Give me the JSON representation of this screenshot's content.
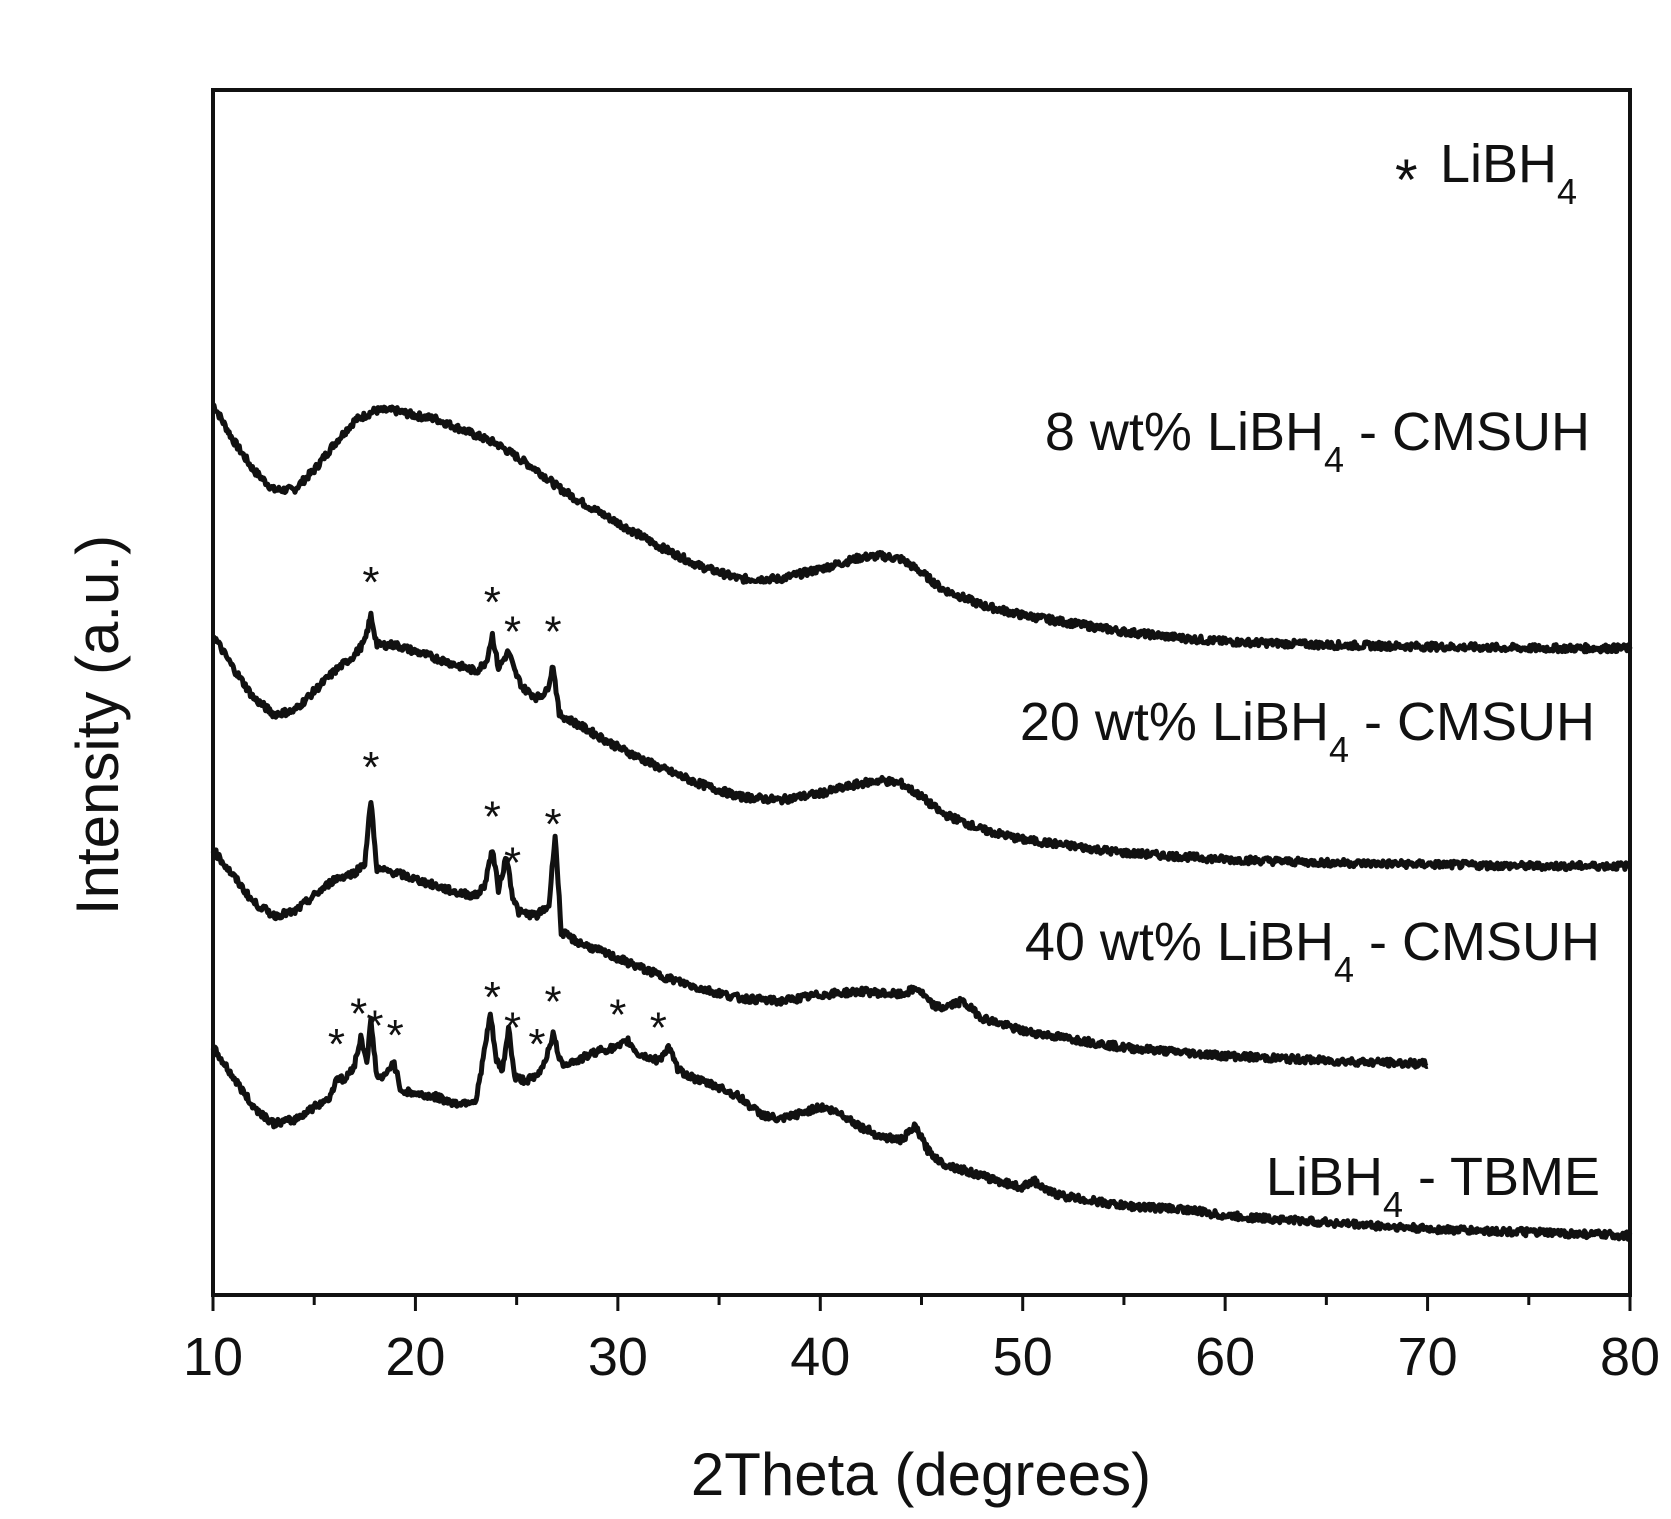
{
  "chart_data": {
    "type": "line",
    "title": "",
    "xlabel": "2Theta (degrees)",
    "ylabel": "Intensity (a.u.)",
    "xlim": [
      10,
      80
    ],
    "xticks": [
      10,
      20,
      30,
      40,
      50,
      60,
      70,
      80
    ],
    "xtick_labels": [
      "10",
      "20",
      "30",
      "40",
      "50",
      "60",
      "70",
      "80"
    ],
    "y_ticks_shown": false,
    "legend": {
      "symbol": "*",
      "label": "LiBH",
      "sub": "4",
      "placement": "top-right"
    },
    "series": [
      {
        "name": "8 wt% LiBH4 - CMSUH",
        "label": {
          "pre": "8 wt% LiBH",
          "sub": "4",
          "post": " - CMSUH"
        },
        "x": [
          10,
          11,
          12,
          13,
          14,
          15,
          16,
          17,
          18,
          19,
          20,
          21,
          22,
          23,
          24,
          25,
          26,
          27,
          28,
          30,
          32,
          34,
          36,
          38,
          40,
          42,
          43,
          44,
          45,
          46,
          48,
          50,
          52,
          55,
          58,
          60,
          65,
          70,
          75,
          80
        ],
        "y": [
          7.7,
          7.48,
          7.3,
          7.18,
          7.18,
          7.3,
          7.46,
          7.6,
          7.66,
          7.66,
          7.63,
          7.61,
          7.56,
          7.51,
          7.46,
          7.38,
          7.3,
          7.2,
          7.12,
          6.98,
          6.84,
          6.72,
          6.64,
          6.64,
          6.7,
          6.77,
          6.78,
          6.76,
          6.68,
          6.58,
          6.48,
          6.42,
          6.38,
          6.32,
          6.28,
          6.26,
          6.24,
          6.23,
          6.22,
          6.22
        ],
        "peaks": []
      },
      {
        "name": "20 wt% LiBH4 - CMSUH",
        "label": {
          "pre": "20 wt% LiBH",
          "sub": "4",
          "post": " - CMSUH"
        },
        "x": [
          10,
          11,
          12,
          13,
          14,
          15,
          16,
          17,
          17.5,
          17.8,
          18.1,
          19,
          20,
          21,
          22,
          23,
          23.5,
          23.8,
          24.1,
          24.6,
          24.9,
          25.3,
          26,
          26.5,
          26.8,
          27.1,
          28,
          30,
          32,
          34,
          36,
          38,
          40,
          42,
          43,
          44,
          45,
          46,
          48,
          50,
          55,
          60,
          65,
          70,
          75,
          80
        ],
        "y": [
          6.3,
          6.1,
          5.92,
          5.82,
          5.84,
          5.96,
          6.08,
          6.18,
          6.26,
          6.42,
          6.24,
          6.24,
          6.2,
          6.16,
          6.12,
          6.08,
          6.14,
          6.3,
          6.1,
          6.2,
          6.08,
          5.98,
          5.92,
          5.96,
          6.12,
          5.82,
          5.76,
          5.62,
          5.5,
          5.4,
          5.32,
          5.3,
          5.34,
          5.4,
          5.42,
          5.4,
          5.32,
          5.22,
          5.12,
          5.06,
          4.98,
          4.94,
          4.92,
          4.91,
          4.9,
          4.9
        ],
        "peaks": [
          17.8,
          23.8,
          24.8,
          26.8
        ]
      },
      {
        "name": "40 wt% LiBH4 - CMSUH",
        "label": {
          "pre": "40 wt% LiBH",
          "sub": "4",
          "post": " - CMSUH"
        },
        "x": [
          10,
          11,
          12,
          13,
          14,
          15,
          16,
          17,
          17.5,
          17.8,
          18.1,
          19,
          20,
          21,
          22,
          23,
          23.4,
          23.8,
          24.1,
          24.5,
          24.8,
          25.1,
          26,
          26.6,
          26.9,
          27.2,
          28,
          30,
          32,
          34,
          36,
          38,
          40,
          42,
          44,
          44.8,
          45.5,
          46,
          47,
          48,
          50,
          55,
          60,
          65,
          70
        ],
        "y": [
          5.0,
          4.84,
          4.68,
          4.6,
          4.62,
          4.72,
          4.82,
          4.86,
          4.92,
          5.3,
          4.88,
          4.86,
          4.82,
          4.78,
          4.74,
          4.72,
          4.78,
          5.0,
          4.76,
          4.96,
          4.72,
          4.62,
          4.6,
          4.66,
          5.1,
          4.5,
          4.44,
          4.34,
          4.24,
          4.16,
          4.1,
          4.08,
          4.12,
          4.14,
          4.12,
          4.16,
          4.06,
          4.04,
          4.08,
          3.98,
          3.9,
          3.8,
          3.75,
          3.72,
          3.7
        ],
        "peaks": [
          17.8,
          23.8,
          24.8,
          26.8
        ]
      },
      {
        "name": "LiBH4 - TBME",
        "label": {
          "pre": "LiBH",
          "sub": "4",
          "post": " - TBME"
        },
        "x": [
          10,
          11,
          12,
          13,
          14,
          15,
          15.8,
          16.1,
          16.5,
          17.0,
          17.3,
          17.6,
          17.8,
          18.1,
          18.5,
          18.9,
          19.3,
          20,
          21,
          22,
          23,
          23.3,
          23.7,
          24.0,
          24.3,
          24.6,
          24.9,
          25.4,
          26.0,
          26.4,
          26.8,
          27.2,
          28,
          29,
          30,
          30.5,
          31,
          32,
          32.5,
          33,
          34,
          35,
          36,
          37,
          38,
          40,
          41,
          42,
          43,
          44,
          44.7,
          45.3,
          46,
          48,
          50,
          50.5,
          51,
          52,
          55,
          58,
          60,
          65,
          70,
          75,
          80
        ],
        "y": [
          3.8,
          3.62,
          3.44,
          3.34,
          3.36,
          3.44,
          3.5,
          3.62,
          3.6,
          3.7,
          3.86,
          3.72,
          3.96,
          3.62,
          3.62,
          3.72,
          3.54,
          3.52,
          3.5,
          3.46,
          3.48,
          3.7,
          4.0,
          3.72,
          3.66,
          3.92,
          3.62,
          3.6,
          3.62,
          3.72,
          3.88,
          3.7,
          3.72,
          3.78,
          3.8,
          3.84,
          3.76,
          3.72,
          3.8,
          3.66,
          3.6,
          3.56,
          3.5,
          3.4,
          3.36,
          3.44,
          3.4,
          3.32,
          3.26,
          3.24,
          3.32,
          3.18,
          3.1,
          3.02,
          2.95,
          3.0,
          2.94,
          2.9,
          2.84,
          2.82,
          2.78,
          2.74,
          2.7,
          2.68,
          2.66
        ],
        "peaks": [
          16.1,
          17.2,
          18.0,
          19.0,
          23.8,
          24.8,
          26.0,
          26.8,
          30.0,
          32.0
        ]
      }
    ]
  }
}
